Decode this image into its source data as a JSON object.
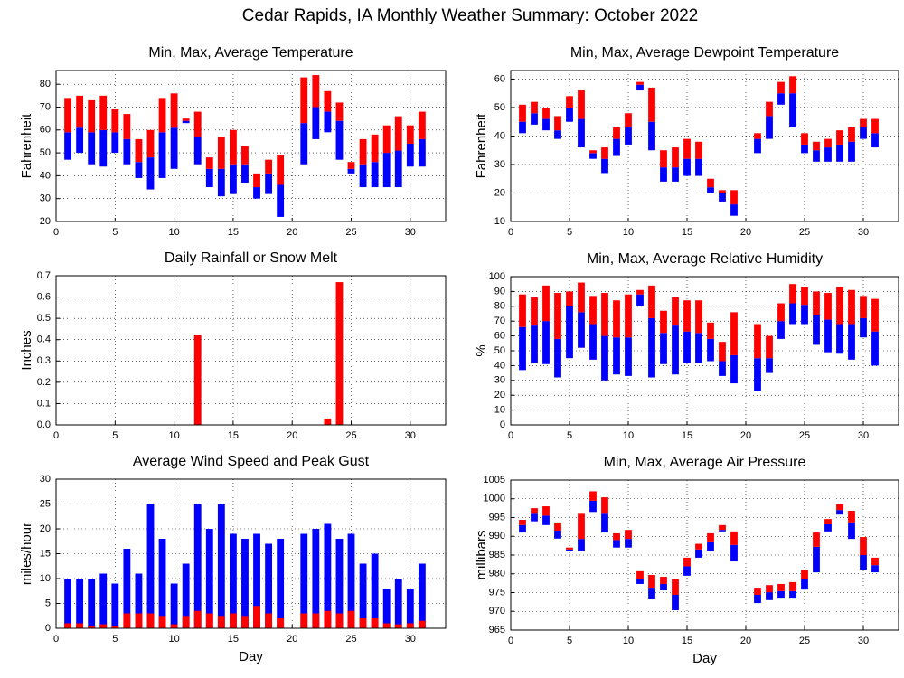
{
  "title": "Cedar Rapids, IA Monthly Weather Summary: October 2022",
  "chart_data": [
    {
      "type": "range",
      "title": "Min, Max, Average Temperature",
      "ylabel": "Fahrenheit",
      "x": [
        1,
        2,
        3,
        4,
        5,
        6,
        7,
        8,
        9,
        10,
        11,
        12,
        13,
        14,
        15,
        16,
        17,
        18,
        19,
        20,
        21,
        22,
        23,
        24,
        25,
        26,
        27,
        28,
        29,
        30,
        31
      ],
      "min": [
        47,
        50,
        45,
        44,
        50,
        45,
        39,
        34,
        39,
        43,
        63,
        45,
        35,
        31,
        32,
        37,
        30,
        32,
        22,
        null,
        45,
        56,
        59,
        47,
        41,
        35,
        35,
        35,
        35,
        44,
        44
      ],
      "avg": [
        59,
        61,
        59,
        60,
        59,
        56,
        46,
        48,
        59,
        61,
        64,
        57,
        43,
        43,
        45,
        45,
        35,
        41,
        36,
        null,
        63,
        70,
        68,
        64,
        43,
        45,
        46,
        50,
        51,
        54,
        56
      ],
      "max": [
        74,
        75,
        73,
        75,
        69,
        67,
        56,
        60,
        74,
        76,
        65,
        68,
        48,
        57,
        60,
        53,
        41,
        47,
        49,
        null,
        83,
        84,
        77,
        72,
        46,
        56,
        58,
        62,
        66,
        62,
        68
      ],
      "lower_color": "#0000ff",
      "upper_color": "#ff0000",
      "xlim": [
        0,
        33
      ],
      "xticks": [
        0,
        5,
        10,
        15,
        20,
        25,
        30
      ],
      "ylim": [
        20,
        86
      ],
      "yticks": [
        20,
        30,
        40,
        50,
        60,
        70,
        80
      ],
      "grid": true
    },
    {
      "type": "range",
      "title": "Min, Max, Average Dewpoint Temperature",
      "ylabel": "Fahrenheit",
      "x": [
        1,
        2,
        3,
        4,
        5,
        6,
        7,
        8,
        9,
        10,
        11,
        12,
        13,
        14,
        15,
        16,
        17,
        18,
        19,
        20,
        21,
        22,
        23,
        24,
        25,
        26,
        27,
        28,
        29,
        30,
        31
      ],
      "min": [
        41,
        44,
        42,
        39,
        45,
        36,
        32,
        27,
        33,
        37,
        56,
        35,
        24,
        24,
        26,
        26,
        20,
        17,
        12,
        null,
        34,
        39,
        51,
        43,
        34,
        31,
        31,
        31,
        31,
        39,
        36
      ],
      "avg": [
        45,
        48,
        46,
        42,
        50,
        46,
        34,
        32,
        39,
        43,
        58,
        45,
        29,
        29,
        32,
        32,
        22,
        20,
        16,
        null,
        39,
        47,
        55,
        55,
        37,
        35,
        36,
        37,
        38,
        43,
        41
      ],
      "max": [
        51,
        52,
        50,
        47,
        54,
        56,
        35,
        36,
        43,
        48,
        59,
        57,
        35,
        36,
        39,
        38,
        25,
        21,
        21,
        null,
        41,
        52,
        59,
        61,
        41,
        38,
        39,
        42,
        43,
        46,
        46
      ],
      "lower_color": "#0000ff",
      "upper_color": "#ff0000",
      "xlim": [
        0,
        33
      ],
      "xticks": [
        0,
        5,
        10,
        15,
        20,
        25,
        30
      ],
      "ylim": [
        10,
        63
      ],
      "yticks": [
        10,
        20,
        30,
        40,
        50,
        60
      ],
      "grid": true
    },
    {
      "type": "bar",
      "title": "Daily Rainfall or Snow Melt",
      "ylabel": "Inches",
      "x": [
        1,
        2,
        3,
        4,
        5,
        6,
        7,
        8,
        9,
        10,
        11,
        12,
        13,
        14,
        15,
        16,
        17,
        18,
        19,
        20,
        21,
        22,
        23,
        24,
        25,
        26,
        27,
        28,
        29,
        30,
        31
      ],
      "values": [
        0,
        0,
        0,
        0,
        0,
        0,
        0,
        0,
        0,
        0,
        0,
        0.42,
        0,
        0,
        0,
        0,
        0,
        0,
        0,
        null,
        0,
        0,
        0.03,
        0.67,
        0,
        0,
        0,
        0,
        0,
        0,
        0
      ],
      "color": "#ff0000",
      "xlim": [
        0,
        33
      ],
      "xticks": [
        0,
        5,
        10,
        15,
        20,
        25,
        30
      ],
      "ylim": [
        0,
        0.7
      ],
      "yticks": [
        {
          "value": 0,
          "label": "0.0"
        },
        0.1,
        0.2,
        0.3,
        0.4,
        0.5,
        0.6,
        0.7
      ],
      "grid": true
    },
    {
      "type": "range",
      "title": "Min, Max, Average Relative Humidity",
      "ylabel": "%",
      "x": [
        1,
        2,
        3,
        4,
        5,
        6,
        7,
        8,
        9,
        10,
        11,
        12,
        13,
        14,
        15,
        16,
        17,
        18,
        19,
        20,
        21,
        22,
        23,
        24,
        25,
        26,
        27,
        28,
        29,
        30,
        31
      ],
      "min": [
        37,
        42,
        41,
        32,
        45,
        52,
        44,
        30,
        34,
        33,
        80,
        32,
        41,
        34,
        42,
        42,
        43,
        33,
        28,
        null,
        23,
        35,
        58,
        68,
        68,
        54,
        49,
        48,
        44,
        59,
        40
      ],
      "avg": [
        66,
        67,
        70,
        58,
        80,
        76,
        68,
        60,
        59,
        59,
        88,
        72,
        62,
        67,
        63,
        62,
        58,
        43,
        47,
        null,
        45,
        45,
        70,
        82,
        81,
        74,
        71,
        68,
        68,
        72,
        63
      ],
      "max": [
        88,
        86,
        94,
        89,
        90,
        96,
        87,
        89,
        84,
        88,
        91,
        94,
        77,
        86,
        84,
        84,
        69,
        56,
        76,
        null,
        68,
        60,
        82,
        95,
        93,
        90,
        89,
        93,
        91,
        87,
        85
      ],
      "lower_color": "#0000ff",
      "upper_color": "#ff0000",
      "xlim": [
        0,
        33
      ],
      "xticks": [
        0,
        5,
        10,
        15,
        20,
        25,
        30
      ],
      "ylim": [
        0,
        100
      ],
      "yticks": [
        0,
        10,
        20,
        30,
        40,
        50,
        60,
        70,
        80,
        90,
        100
      ],
      "grid": true
    },
    {
      "type": "overlay_bar",
      "title": "Average Wind Speed and Peak Gust",
      "ylabel": "miles/hour",
      "xlabel": "Day",
      "x": [
        1,
        2,
        3,
        4,
        5,
        6,
        7,
        8,
        9,
        10,
        11,
        12,
        13,
        14,
        15,
        16,
        17,
        18,
        19,
        20,
        21,
        22,
        23,
        24,
        25,
        26,
        27,
        28,
        29,
        30,
        31
      ],
      "series": [
        {
          "color": "#0000ff",
          "values": [
            10,
            10,
            10,
            11,
            9,
            16,
            11,
            25,
            18,
            9,
            13,
            25,
            20,
            25,
            19,
            18,
            19,
            17,
            18,
            null,
            19,
            20,
            21,
            18,
            19,
            13,
            15,
            8,
            10,
            8,
            13
          ]
        },
        {
          "color": "#ff0000",
          "values": [
            1,
            1,
            0.5,
            0.8,
            0.5,
            3,
            3,
            3,
            2.5,
            0.8,
            2.5,
            3.5,
            3,
            2.5,
            3,
            2.5,
            4.5,
            3,
            2,
            null,
            3,
            3,
            3.5,
            3,
            3.5,
            2,
            2,
            1,
            0.8,
            1,
            1.5
          ]
        }
      ],
      "xlim": [
        0,
        33
      ],
      "xticks": [
        0,
        5,
        10,
        15,
        20,
        25,
        30
      ],
      "ylim": [
        0,
        30
      ],
      "yticks": [
        0,
        5,
        10,
        15,
        20,
        25,
        30
      ],
      "grid": true
    },
    {
      "type": "range",
      "title": "Min, Max, Average Air Pressure",
      "ylabel": "millibars",
      "xlabel": "Day",
      "x": [
        1,
        2,
        3,
        4,
        5,
        6,
        7,
        8,
        9,
        10,
        11,
        12,
        13,
        14,
        15,
        16,
        17,
        18,
        19,
        20,
        21,
        22,
        23,
        24,
        25,
        26,
        27,
        28,
        29,
        30,
        31
      ],
      "min": [
        991,
        994,
        993,
        989.4,
        986,
        986,
        996.5,
        991,
        987,
        987,
        977.3,
        973.2,
        975.6,
        970.3,
        979.5,
        984.3,
        986,
        991.3,
        983.3,
        null,
        972.2,
        973,
        973.4,
        973.4,
        975.8,
        980.4,
        991.3,
        995.8,
        989.3,
        981.1,
        980.4
      ],
      "avg": [
        993,
        996,
        995.5,
        991.5,
        986.5,
        989.3,
        999.5,
        996,
        989,
        989.3,
        978.5,
        976.3,
        977.3,
        974.4,
        982,
        986.5,
        988.4,
        991.7,
        987.7,
        null,
        974.4,
        975.1,
        975.4,
        975.4,
        978.7,
        987.2,
        993.2,
        997,
        993.7,
        985,
        982.3
      ],
      "max": [
        994.4,
        997.5,
        998,
        993.7,
        987,
        996,
        1002,
        1000.4,
        990.8,
        991.7,
        980.7,
        979.7,
        979.2,
        978.5,
        984.3,
        988,
        990.8,
        993,
        991.3,
        null,
        976.3,
        977,
        977.3,
        977.8,
        981,
        991,
        994.6,
        998.5,
        996.8,
        989.8,
        984.3
      ],
      "lower_color": "#0000ff",
      "upper_color": "#ff0000",
      "xlim": [
        0,
        33
      ],
      "xticks": [
        0,
        5,
        10,
        15,
        20,
        25,
        30
      ],
      "ylim": [
        965,
        1005
      ],
      "yticks": [
        965,
        970,
        975,
        980,
        985,
        990,
        995,
        1000,
        1005
      ],
      "grid": true
    }
  ]
}
